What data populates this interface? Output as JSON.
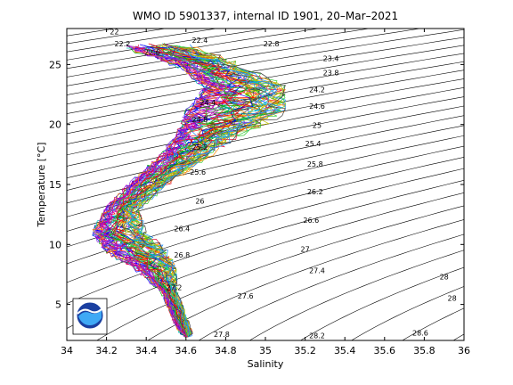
{
  "chart_data": {
    "type": "line",
    "title": "WMO ID 5901337, internal ID 1901, 20–Mar–2021",
    "xlabel": "Salinity",
    "ylabel": "Temperature [°C]",
    "xlim": [
      34,
      36
    ],
    "ylim": [
      2,
      28
    ],
    "xticks": [
      "34",
      "34.2",
      "34.4",
      "34.6",
      "34.8",
      "35",
      "35.2",
      "35.4",
      "35.6",
      "35.8",
      "36"
    ],
    "yticks": [
      "5",
      "10",
      "15",
      "20",
      "25"
    ],
    "isopycnal_labels": [
      {
        "text": "22",
        "s": 34.24,
        "t": 27.5
      },
      {
        "text": "22.2",
        "s": 34.28,
        "t": 26.5
      },
      {
        "text": "22.4",
        "s": 34.67,
        "t": 26.8
      },
      {
        "text": "22.6",
        "s": 34.43,
        "t": 25.8
      },
      {
        "text": "22.8",
        "s": 35.03,
        "t": 26.5
      },
      {
        "text": "23.4",
        "s": 35.33,
        "t": 25.3
      },
      {
        "text": "23.8",
        "s": 35.33,
        "t": 24.1
      },
      {
        "text": "24.2",
        "s": 35.26,
        "t": 22.7
      },
      {
        "text": "24.6",
        "s": 35.26,
        "t": 21.3
      },
      {
        "text": "25",
        "s": 35.26,
        "t": 19.7
      },
      {
        "text": "25.4",
        "s": 35.24,
        "t": 18.2
      },
      {
        "text": "25.8",
        "s": 35.25,
        "t": 16.5
      },
      {
        "text": "26.2",
        "s": 35.25,
        "t": 14.2
      },
      {
        "text": "26.6",
        "s": 35.23,
        "t": 11.8
      },
      {
        "text": "27",
        "s": 35.2,
        "t": 9.4
      },
      {
        "text": "27.4",
        "s": 35.26,
        "t": 7.6
      },
      {
        "text": "28",
        "s": 35.9,
        "t": 7.1
      },
      {
        "text": "28",
        "s": 35.94,
        "t": 5.3
      },
      {
        "text": "27.8",
        "s": 34.78,
        "t": 2.3
      },
      {
        "text": "28.2",
        "s": 35.26,
        "t": 2.2
      },
      {
        "text": "28.6",
        "s": 35.78,
        "t": 2.4
      },
      {
        "text": "25.6",
        "s": 34.66,
        "t": 15.8
      },
      {
        "text": "26",
        "s": 34.67,
        "t": 13.4
      },
      {
        "text": "26.4",
        "s": 34.58,
        "t": 11.1
      },
      {
        "text": "26.8",
        "s": 34.58,
        "t": 8.9
      },
      {
        "text": "27.2",
        "s": 34.54,
        "t": 6.2
      },
      {
        "text": "27.6",
        "s": 34.9,
        "t": 5.5
      },
      {
        "text": "25.2",
        "s": 34.67,
        "t": 17.9
      },
      {
        "text": "24.8",
        "s": 34.67,
        "t": 20.2
      },
      {
        "text": "24.4",
        "s": 34.71,
        "t": 21.6
      }
    ],
    "profile_envelope": [
      {
        "t": 26.5,
        "s_min": 34.3,
        "s_max": 34.62
      },
      {
        "t": 25,
        "s_min": 34.56,
        "s_max": 34.85
      },
      {
        "t": 23,
        "s_min": 34.7,
        "s_max": 35.1
      },
      {
        "t": 21,
        "s_min": 34.6,
        "s_max": 35.1
      },
      {
        "t": 19,
        "s_min": 34.55,
        "s_max": 34.85
      },
      {
        "t": 17,
        "s_min": 34.45,
        "s_max": 34.68
      },
      {
        "t": 15,
        "s_min": 34.32,
        "s_max": 34.5
      },
      {
        "t": 13,
        "s_min": 34.2,
        "s_max": 34.36
      },
      {
        "t": 11,
        "s_min": 34.13,
        "s_max": 34.4
      },
      {
        "t": 9.5,
        "s_min": 34.2,
        "s_max": 34.5
      },
      {
        "t": 8,
        "s_min": 34.35,
        "s_max": 34.55
      },
      {
        "t": 6,
        "s_min": 34.48,
        "s_max": 34.56
      },
      {
        "t": 4,
        "s_min": 34.53,
        "s_max": 34.6
      },
      {
        "t": 2.3,
        "s_min": 34.58,
        "s_max": 34.64
      }
    ],
    "profile_colors": [
      "#0000ff",
      "#00aa00",
      "#ff0000",
      "#00bfbf",
      "#bf00bf",
      "#bfbf00",
      "#404040",
      "#1e90ff",
      "#ff8c00",
      "#8a2be2",
      "#32cd32",
      "#dc143c"
    ],
    "profile_count": 60,
    "grid": false,
    "logo": "noaa-logo"
  }
}
